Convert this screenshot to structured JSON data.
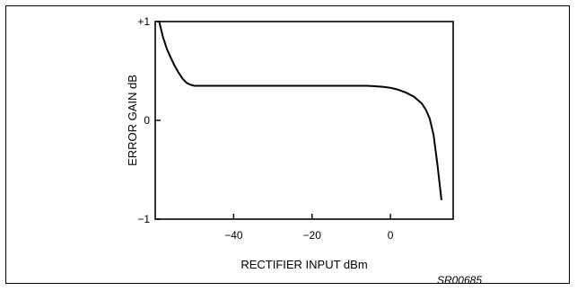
{
  "chart_data": {
    "type": "line",
    "title": "",
    "xlabel": "RECTIFIER INPUT dBm",
    "ylabel": "ERROR GAIN dB",
    "xlim": [
      -60,
      16
    ],
    "ylim": [
      -1,
      1
    ],
    "x_ticks": [
      -40,
      -20,
      0
    ],
    "x_tick_labels": [
      "−40",
      "−20",
      "0"
    ],
    "y_ticks": [
      1,
      0,
      -1
    ],
    "y_tick_labels": [
      "+1",
      "0",
      "−1"
    ],
    "grid": false,
    "legend": "none",
    "series": [
      {
        "x": [
          -59,
          -58,
          -57,
          -56,
          -55,
          -54,
          -53,
          -52,
          -51,
          -50,
          -45,
          -40,
          -30,
          -20,
          -10,
          -6,
          -4,
          -2,
          0,
          2,
          4,
          6,
          8,
          9,
          10,
          11,
          12,
          13
        ],
        "y": [
          1.0,
          0.84,
          0.72,
          0.63,
          0.55,
          0.48,
          0.42,
          0.38,
          0.36,
          0.35,
          0.35,
          0.35,
          0.35,
          0.35,
          0.35,
          0.35,
          0.345,
          0.34,
          0.33,
          0.31,
          0.28,
          0.24,
          0.17,
          0.11,
          0.02,
          -0.15,
          -0.45,
          -0.8
        ],
        "color": "#000000"
      }
    ]
  },
  "figure_code": "SR00685"
}
